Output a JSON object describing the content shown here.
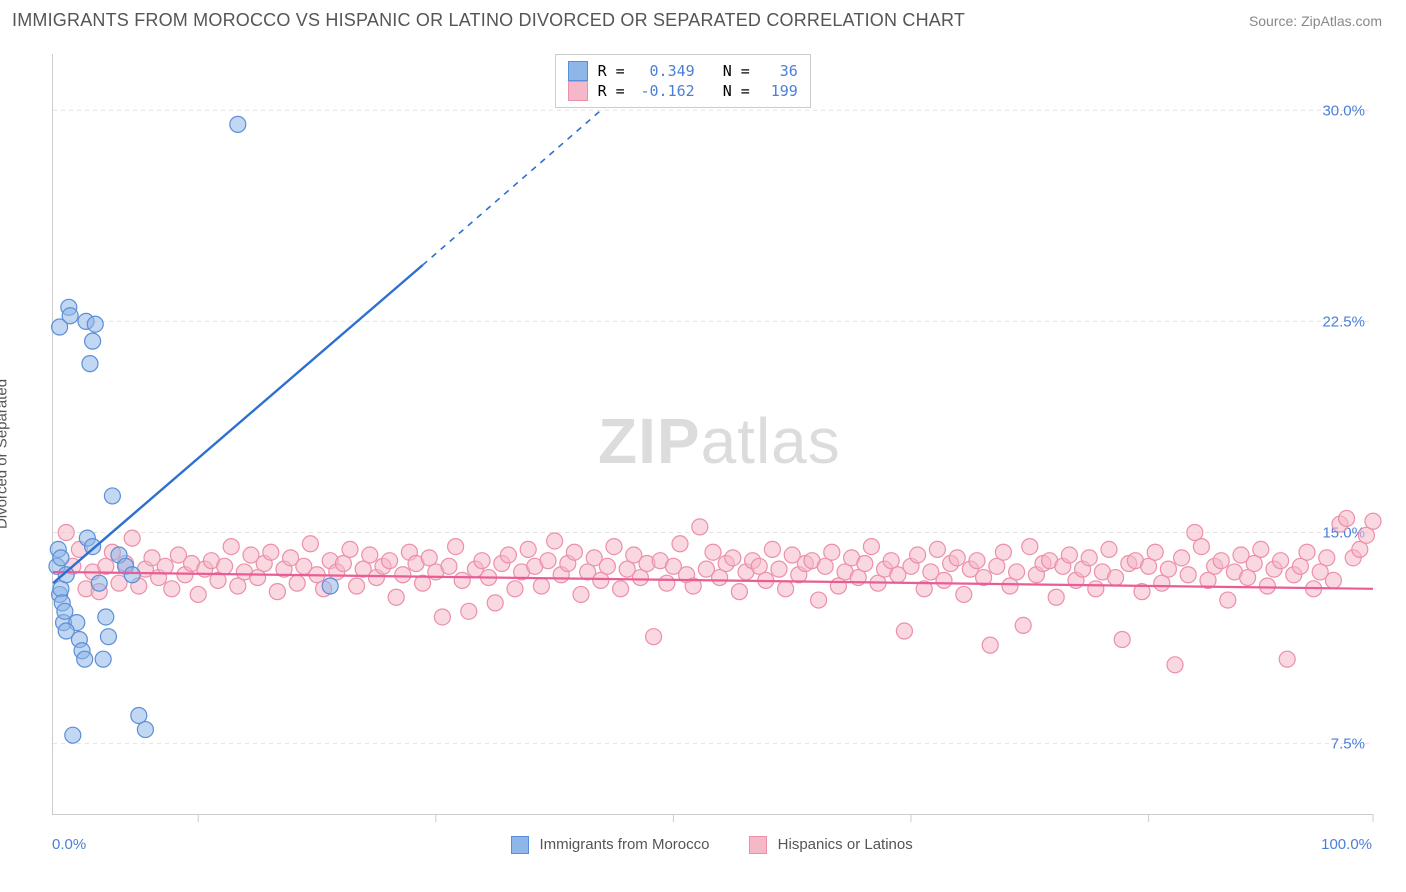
{
  "title": "IMMIGRANTS FROM MOROCCO VS HISPANIC OR LATINO DIVORCED OR SEPARATED CORRELATION CHART",
  "source": "Source: ZipAtlas.com",
  "ylabel": "Divorced or Separated",
  "watermark_a": "ZIP",
  "watermark_b": "atlas",
  "chart": {
    "type": "scatter",
    "xlim": [
      0,
      100
    ],
    "ylim": [
      5,
      32
    ],
    "xgrid_ticks": [
      11,
      29,
      47,
      65,
      83,
      100
    ],
    "ygrid": [
      7.5,
      15.0,
      22.5,
      30.0
    ],
    "ygrid_labels": [
      "7.5%",
      "15.0%",
      "22.5%",
      "30.0%"
    ],
    "xmin_label": "0.0%",
    "xmax_label": "100.0%",
    "background_color": "#ffffff",
    "grid_color": "#e2e2e2",
    "axis_color": "#cccccc",
    "marker_radius": 8,
    "marker_opacity": 0.55,
    "series": {
      "morocco": {
        "label": "Immigrants from Morocco",
        "fill": "#8fb6e8",
        "stroke": "#5a8fd8",
        "line_color": "#2e6fd0",
        "R": "0.349",
        "N": "36",
        "trend": {
          "x1": 0,
          "y1": 13.2,
          "x2": 28,
          "y2": 24.5,
          "dash_from_x": 28,
          "dash_to_x": 42,
          "dash_to_y": 30.2
        },
        "points": [
          [
            0.3,
            13.8
          ],
          [
            0.4,
            14.4
          ],
          [
            0.5,
            12.8
          ],
          [
            0.6,
            13.0
          ],
          [
            0.7,
            12.5
          ],
          [
            0.8,
            11.8
          ],
          [
            0.9,
            12.2
          ],
          [
            1.0,
            13.5
          ],
          [
            1.2,
            23.0
          ],
          [
            1.3,
            22.7
          ],
          [
            0.5,
            22.3
          ],
          [
            2.5,
            22.5
          ],
          [
            3.0,
            21.8
          ],
          [
            1.8,
            11.8
          ],
          [
            2.0,
            11.2
          ],
          [
            2.2,
            10.8
          ],
          [
            2.4,
            10.5
          ],
          [
            2.6,
            14.8
          ],
          [
            3.0,
            14.5
          ],
          [
            3.5,
            13.2
          ],
          [
            3.8,
            10.5
          ],
          [
            4.0,
            12.0
          ],
          [
            4.2,
            11.3
          ],
          [
            4.5,
            16.3
          ],
          [
            5.0,
            14.2
          ],
          [
            5.5,
            13.8
          ],
          [
            6.0,
            13.5
          ],
          [
            6.5,
            8.5
          ],
          [
            7.0,
            8.0
          ],
          [
            1.5,
            7.8
          ],
          [
            14.0,
            29.5
          ],
          [
            21.0,
            13.1
          ],
          [
            2.8,
            21.0
          ],
          [
            3.2,
            22.4
          ],
          [
            1.0,
            11.5
          ],
          [
            0.6,
            14.1
          ]
        ]
      },
      "hispanic": {
        "label": "Hispanics or Latinos",
        "fill": "#f5b8c8",
        "stroke": "#ec8fa8",
        "line_color": "#ea5d94",
        "R": "-0.162",
        "N": "199",
        "trend": {
          "x1": 0,
          "y1": 13.6,
          "x2": 100,
          "y2": 13.0
        },
        "points": [
          [
            1,
            15.0
          ],
          [
            1.5,
            13.8
          ],
          [
            2,
            14.4
          ],
          [
            2.5,
            13.0
          ],
          [
            3,
            13.6
          ],
          [
            3.5,
            12.9
          ],
          [
            4,
            13.8
          ],
          [
            4.5,
            14.3
          ],
          [
            5,
            13.2
          ],
          [
            5.5,
            13.9
          ],
          [
            6,
            14.8
          ],
          [
            6.5,
            13.1
          ],
          [
            7,
            13.7
          ],
          [
            7.5,
            14.1
          ],
          [
            8,
            13.4
          ],
          [
            8.5,
            13.8
          ],
          [
            9,
            13.0
          ],
          [
            9.5,
            14.2
          ],
          [
            10,
            13.5
          ],
          [
            10.5,
            13.9
          ],
          [
            11,
            12.8
          ],
          [
            11.5,
            13.7
          ],
          [
            12,
            14.0
          ],
          [
            12.5,
            13.3
          ],
          [
            13,
            13.8
          ],
          [
            13.5,
            14.5
          ],
          [
            14,
            13.1
          ],
          [
            14.5,
            13.6
          ],
          [
            15,
            14.2
          ],
          [
            15.5,
            13.4
          ],
          [
            16,
            13.9
          ],
          [
            16.5,
            14.3
          ],
          [
            17,
            12.9
          ],
          [
            17.5,
            13.7
          ],
          [
            18,
            14.1
          ],
          [
            18.5,
            13.2
          ],
          [
            19,
            13.8
          ],
          [
            19.5,
            14.6
          ],
          [
            20,
            13.5
          ],
          [
            20.5,
            13.0
          ],
          [
            21,
            14.0
          ],
          [
            21.5,
            13.6
          ],
          [
            22,
            13.9
          ],
          [
            22.5,
            14.4
          ],
          [
            23,
            13.1
          ],
          [
            23.5,
            13.7
          ],
          [
            24,
            14.2
          ],
          [
            24.5,
            13.4
          ],
          [
            25,
            13.8
          ],
          [
            25.5,
            14.0
          ],
          [
            26,
            12.7
          ],
          [
            26.5,
            13.5
          ],
          [
            27,
            14.3
          ],
          [
            27.5,
            13.9
          ],
          [
            28,
            13.2
          ],
          [
            28.5,
            14.1
          ],
          [
            29,
            13.6
          ],
          [
            29.5,
            12.0
          ],
          [
            30,
            13.8
          ],
          [
            30.5,
            14.5
          ],
          [
            31,
            13.3
          ],
          [
            31.5,
            12.2
          ],
          [
            32,
            13.7
          ],
          [
            32.5,
            14.0
          ],
          [
            33,
            13.4
          ],
          [
            33.5,
            12.5
          ],
          [
            34,
            13.9
          ],
          [
            34.5,
            14.2
          ],
          [
            35,
            13.0
          ],
          [
            35.5,
            13.6
          ],
          [
            36,
            14.4
          ],
          [
            36.5,
            13.8
          ],
          [
            37,
            13.1
          ],
          [
            37.5,
            14.0
          ],
          [
            38,
            14.7
          ],
          [
            38.5,
            13.5
          ],
          [
            39,
            13.9
          ],
          [
            39.5,
            14.3
          ],
          [
            40,
            12.8
          ],
          [
            40.5,
            13.6
          ],
          [
            41,
            14.1
          ],
          [
            41.5,
            13.3
          ],
          [
            42,
            13.8
          ],
          [
            42.5,
            14.5
          ],
          [
            43,
            13.0
          ],
          [
            43.5,
            13.7
          ],
          [
            44,
            14.2
          ],
          [
            44.5,
            13.4
          ],
          [
            45,
            13.9
          ],
          [
            45.5,
            11.3
          ],
          [
            46,
            14.0
          ],
          [
            46.5,
            13.2
          ],
          [
            47,
            13.8
          ],
          [
            47.5,
            14.6
          ],
          [
            48,
            13.5
          ],
          [
            48.5,
            13.1
          ],
          [
            49,
            15.2
          ],
          [
            49.5,
            13.7
          ],
          [
            50,
            14.3
          ],
          [
            50.5,
            13.4
          ],
          [
            51,
            13.9
          ],
          [
            51.5,
            14.1
          ],
          [
            52,
            12.9
          ],
          [
            52.5,
            13.6
          ],
          [
            53,
            14.0
          ],
          [
            53.5,
            13.8
          ],
          [
            54,
            13.3
          ],
          [
            54.5,
            14.4
          ],
          [
            55,
            13.7
          ],
          [
            55.5,
            13.0
          ],
          [
            56,
            14.2
          ],
          [
            56.5,
            13.5
          ],
          [
            57,
            13.9
          ],
          [
            57.5,
            14.0
          ],
          [
            58,
            12.6
          ],
          [
            58.5,
            13.8
          ],
          [
            59,
            14.3
          ],
          [
            59.5,
            13.1
          ],
          [
            60,
            13.6
          ],
          [
            60.5,
            14.1
          ],
          [
            61,
            13.4
          ],
          [
            61.5,
            13.9
          ],
          [
            62,
            14.5
          ],
          [
            62.5,
            13.2
          ],
          [
            63,
            13.7
          ],
          [
            63.5,
            14.0
          ],
          [
            64,
            13.5
          ],
          [
            64.5,
            11.5
          ],
          [
            65,
            13.8
          ],
          [
            65.5,
            14.2
          ],
          [
            66,
            13.0
          ],
          [
            66.5,
            13.6
          ],
          [
            67,
            14.4
          ],
          [
            67.5,
            13.3
          ],
          [
            68,
            13.9
          ],
          [
            68.5,
            14.1
          ],
          [
            69,
            12.8
          ],
          [
            69.5,
            13.7
          ],
          [
            70,
            14.0
          ],
          [
            70.5,
            13.4
          ],
          [
            71,
            11.0
          ],
          [
            71.5,
            13.8
          ],
          [
            72,
            14.3
          ],
          [
            72.5,
            13.1
          ],
          [
            73,
            13.6
          ],
          [
            73.5,
            11.7
          ],
          [
            74,
            14.5
          ],
          [
            74.5,
            13.5
          ],
          [
            75,
            13.9
          ],
          [
            75.5,
            14.0
          ],
          [
            76,
            12.7
          ],
          [
            76.5,
            13.8
          ],
          [
            77,
            14.2
          ],
          [
            77.5,
            13.3
          ],
          [
            78,
            13.7
          ],
          [
            78.5,
            14.1
          ],
          [
            79,
            13.0
          ],
          [
            79.5,
            13.6
          ],
          [
            80,
            14.4
          ],
          [
            80.5,
            13.4
          ],
          [
            81,
            11.2
          ],
          [
            81.5,
            13.9
          ],
          [
            82,
            14.0
          ],
          [
            82.5,
            12.9
          ],
          [
            83,
            13.8
          ],
          [
            83.5,
            14.3
          ],
          [
            84,
            13.2
          ],
          [
            84.5,
            13.7
          ],
          [
            85,
            10.3
          ],
          [
            85.5,
            14.1
          ],
          [
            86,
            13.5
          ],
          [
            86.5,
            15.0
          ],
          [
            87,
            14.5
          ],
          [
            87.5,
            13.3
          ],
          [
            88,
            13.8
          ],
          [
            88.5,
            14.0
          ],
          [
            89,
            12.6
          ],
          [
            89.5,
            13.6
          ],
          [
            90,
            14.2
          ],
          [
            90.5,
            13.4
          ],
          [
            91,
            13.9
          ],
          [
            91.5,
            14.4
          ],
          [
            92,
            13.1
          ],
          [
            92.5,
            13.7
          ],
          [
            93,
            14.0
          ],
          [
            93.5,
            10.5
          ],
          [
            94,
            13.5
          ],
          [
            94.5,
            13.8
          ],
          [
            95,
            14.3
          ],
          [
            95.5,
            13.0
          ],
          [
            96,
            13.6
          ],
          [
            96.5,
            14.1
          ],
          [
            97,
            13.3
          ],
          [
            97.5,
            15.3
          ],
          [
            98,
            15.5
          ],
          [
            98.5,
            14.1
          ],
          [
            99,
            14.4
          ],
          [
            99.5,
            14.9
          ],
          [
            100,
            15.4
          ]
        ]
      }
    },
    "stats_box": {
      "left_pct": 38,
      "top_pct": 0
    }
  }
}
